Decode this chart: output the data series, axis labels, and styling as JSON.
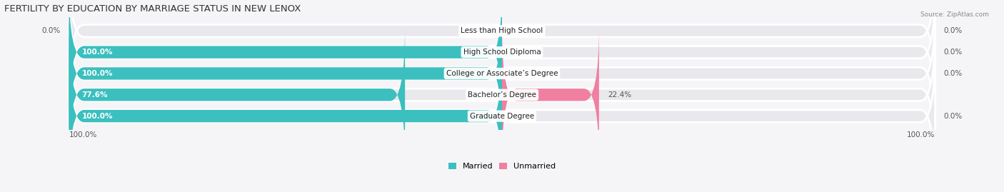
{
  "title": "FERTILITY BY EDUCATION BY MARRIAGE STATUS IN NEW LENOX",
  "source": "Source: ZipAtlas.com",
  "categories": [
    "Less than High School",
    "High School Diploma",
    "College or Associate’s Degree",
    "Bachelor’s Degree",
    "Graduate Degree"
  ],
  "married": [
    0.0,
    100.0,
    100.0,
    77.6,
    100.0
  ],
  "unmarried": [
    0.0,
    0.0,
    0.0,
    22.4,
    0.0
  ],
  "color_married": "#3bbfbf",
  "color_unmarried": "#f07fa0",
  "color_bg_bar": "#e8e8ed",
  "background_color": "#f5f5f7",
  "bar_height": 0.58,
  "title_fontsize": 9.5,
  "label_fontsize": 7.5,
  "category_fontsize": 7.5,
  "legend_fontsize": 8,
  "axis_label_left": "100.0%",
  "axis_label_right": "100.0%"
}
